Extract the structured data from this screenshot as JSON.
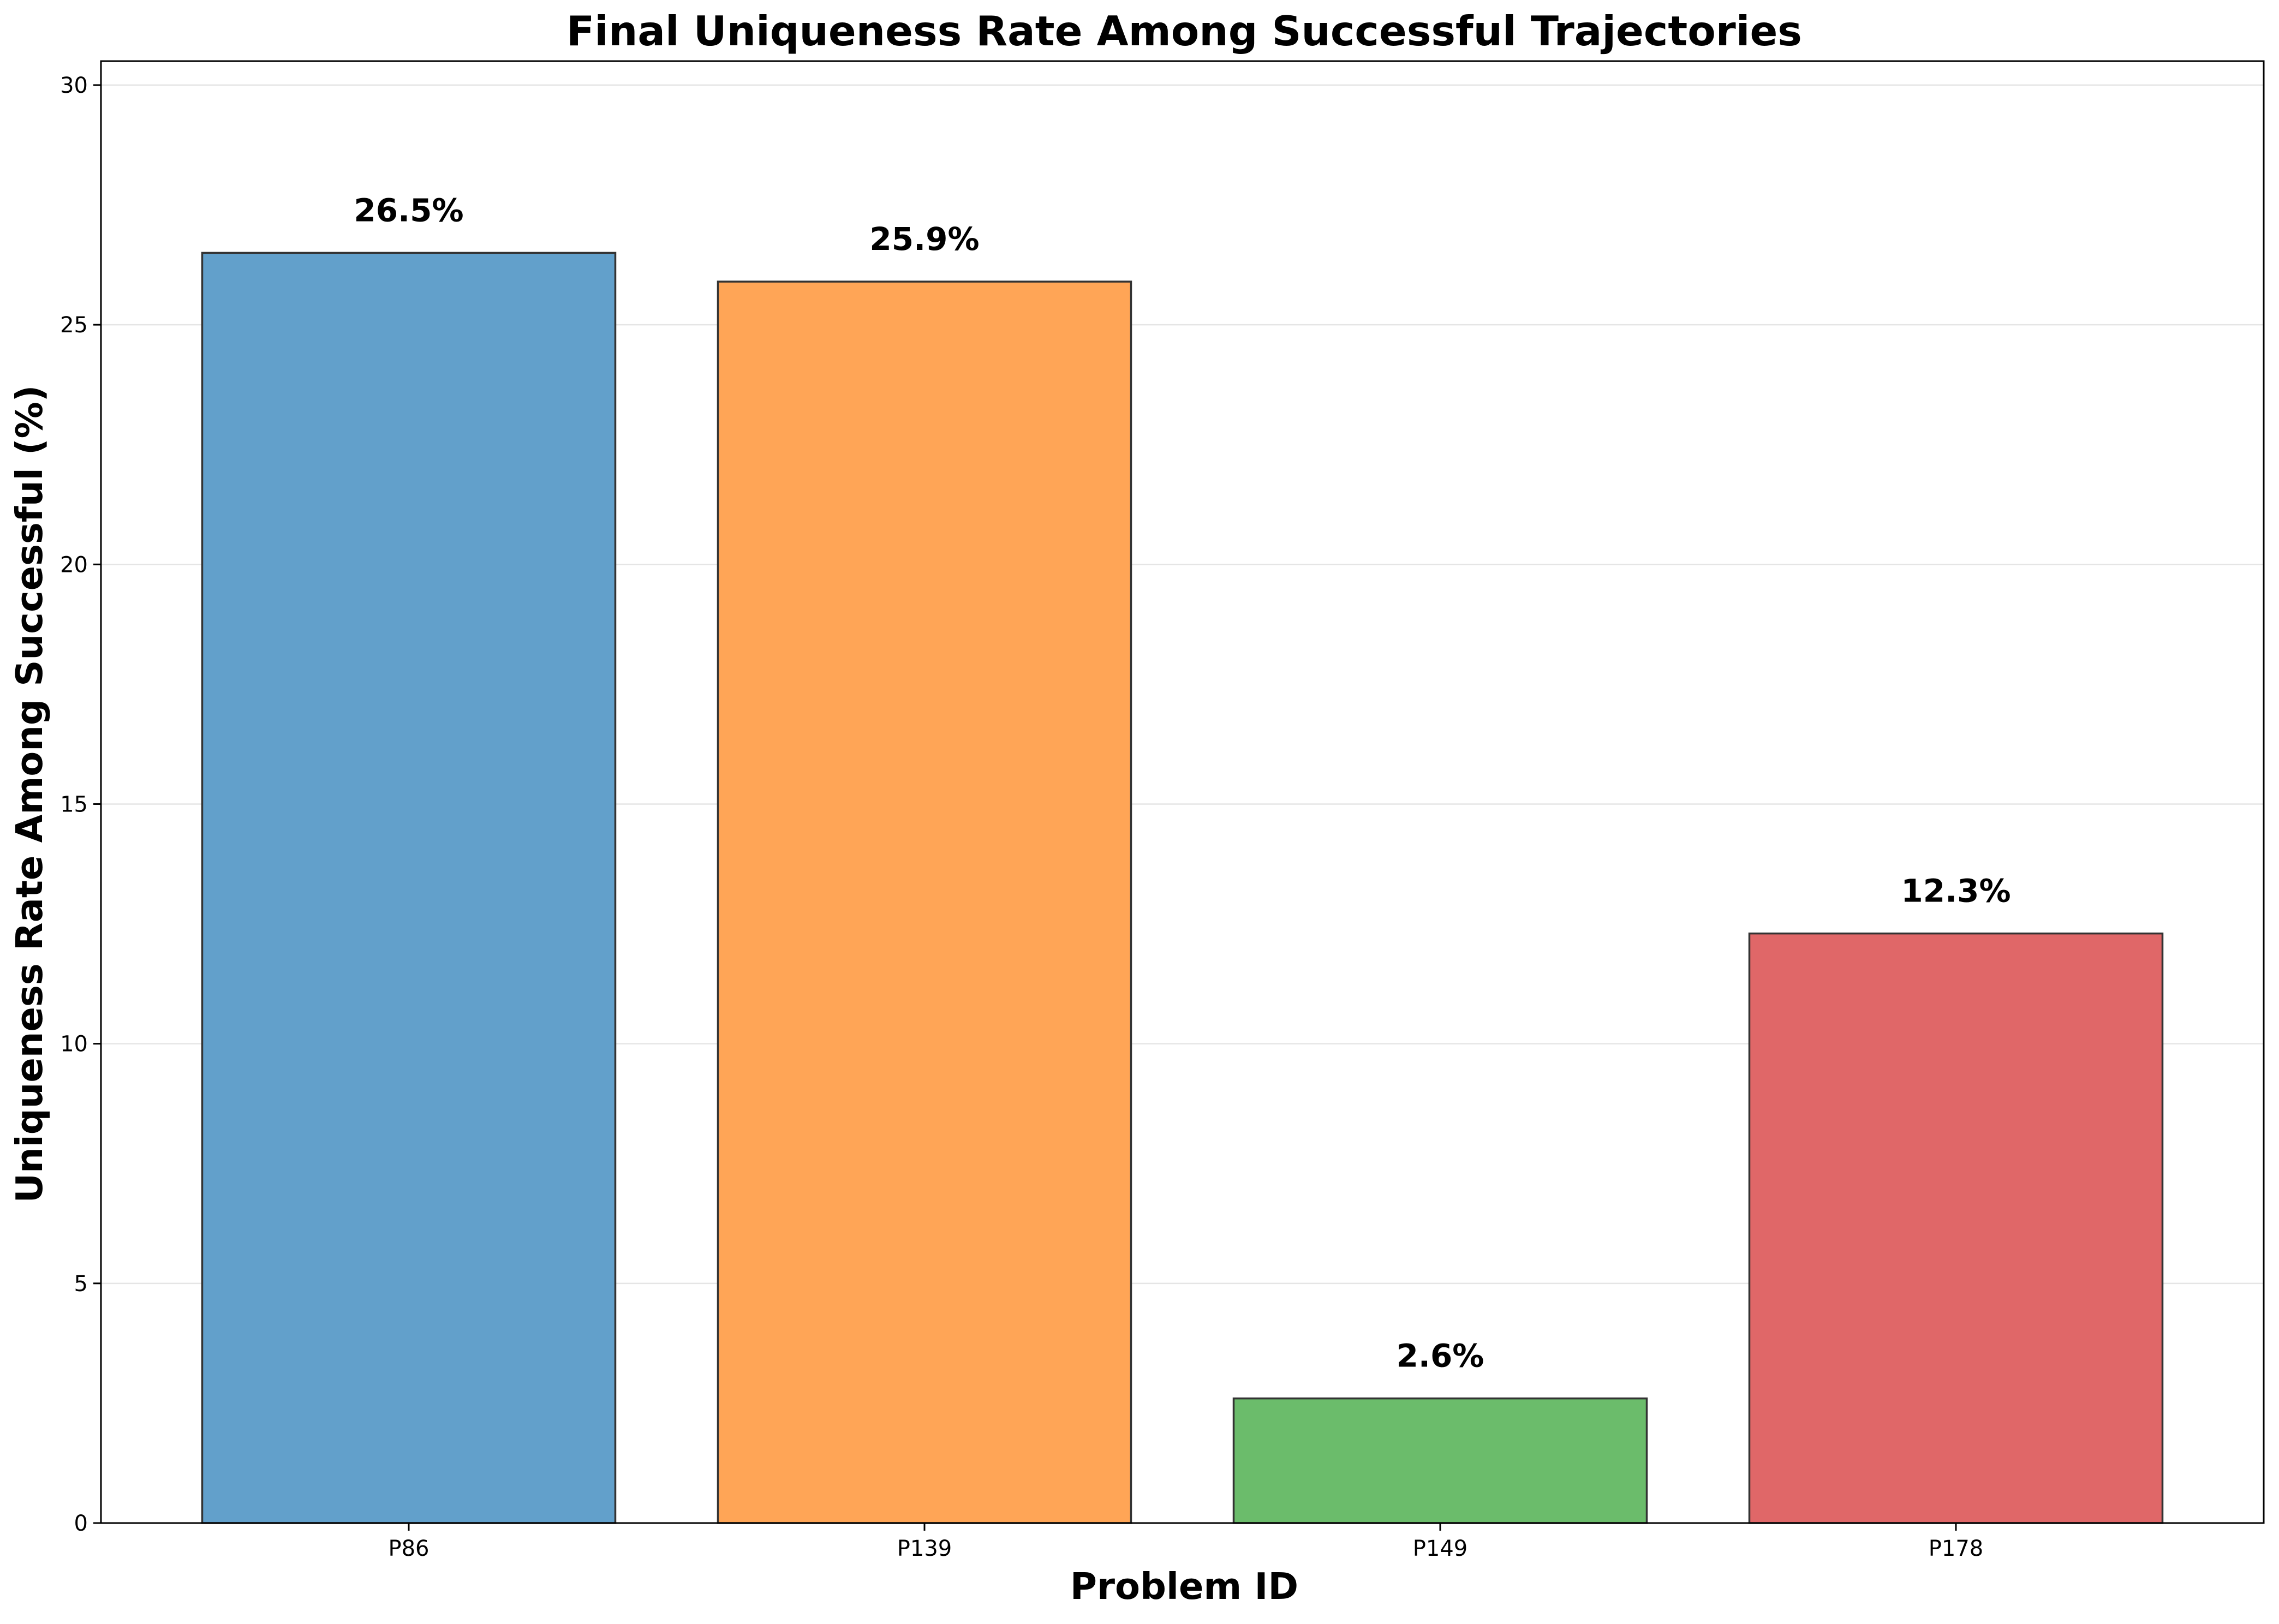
{
  "chart_data": {
    "type": "bar",
    "title": "Final Uniqueness Rate Among Successful Trajectories",
    "xlabel": "Problem ID",
    "ylabel": "Uniqueness Rate Among Successful (%)",
    "categories": [
      "P86",
      "P139",
      "P149",
      "P178"
    ],
    "values": [
      26.5,
      25.9,
      2.6,
      12.3
    ],
    "value_labels": [
      "26.5%",
      "25.9%",
      "2.6%",
      "12.3%"
    ],
    "colors": [
      "#62a0cb",
      "#ffa556",
      "#6bbc6b",
      "#e06768"
    ],
    "bar_edge_color": "#333333",
    "ylim": [
      0,
      30.5
    ],
    "yticks": [
      0,
      5,
      10,
      15,
      20,
      25,
      30
    ],
    "ytick_labels": [
      "0",
      "5",
      "10",
      "15",
      "20",
      "25",
      "30"
    ],
    "grid": "horizontal",
    "legend": "none"
  }
}
